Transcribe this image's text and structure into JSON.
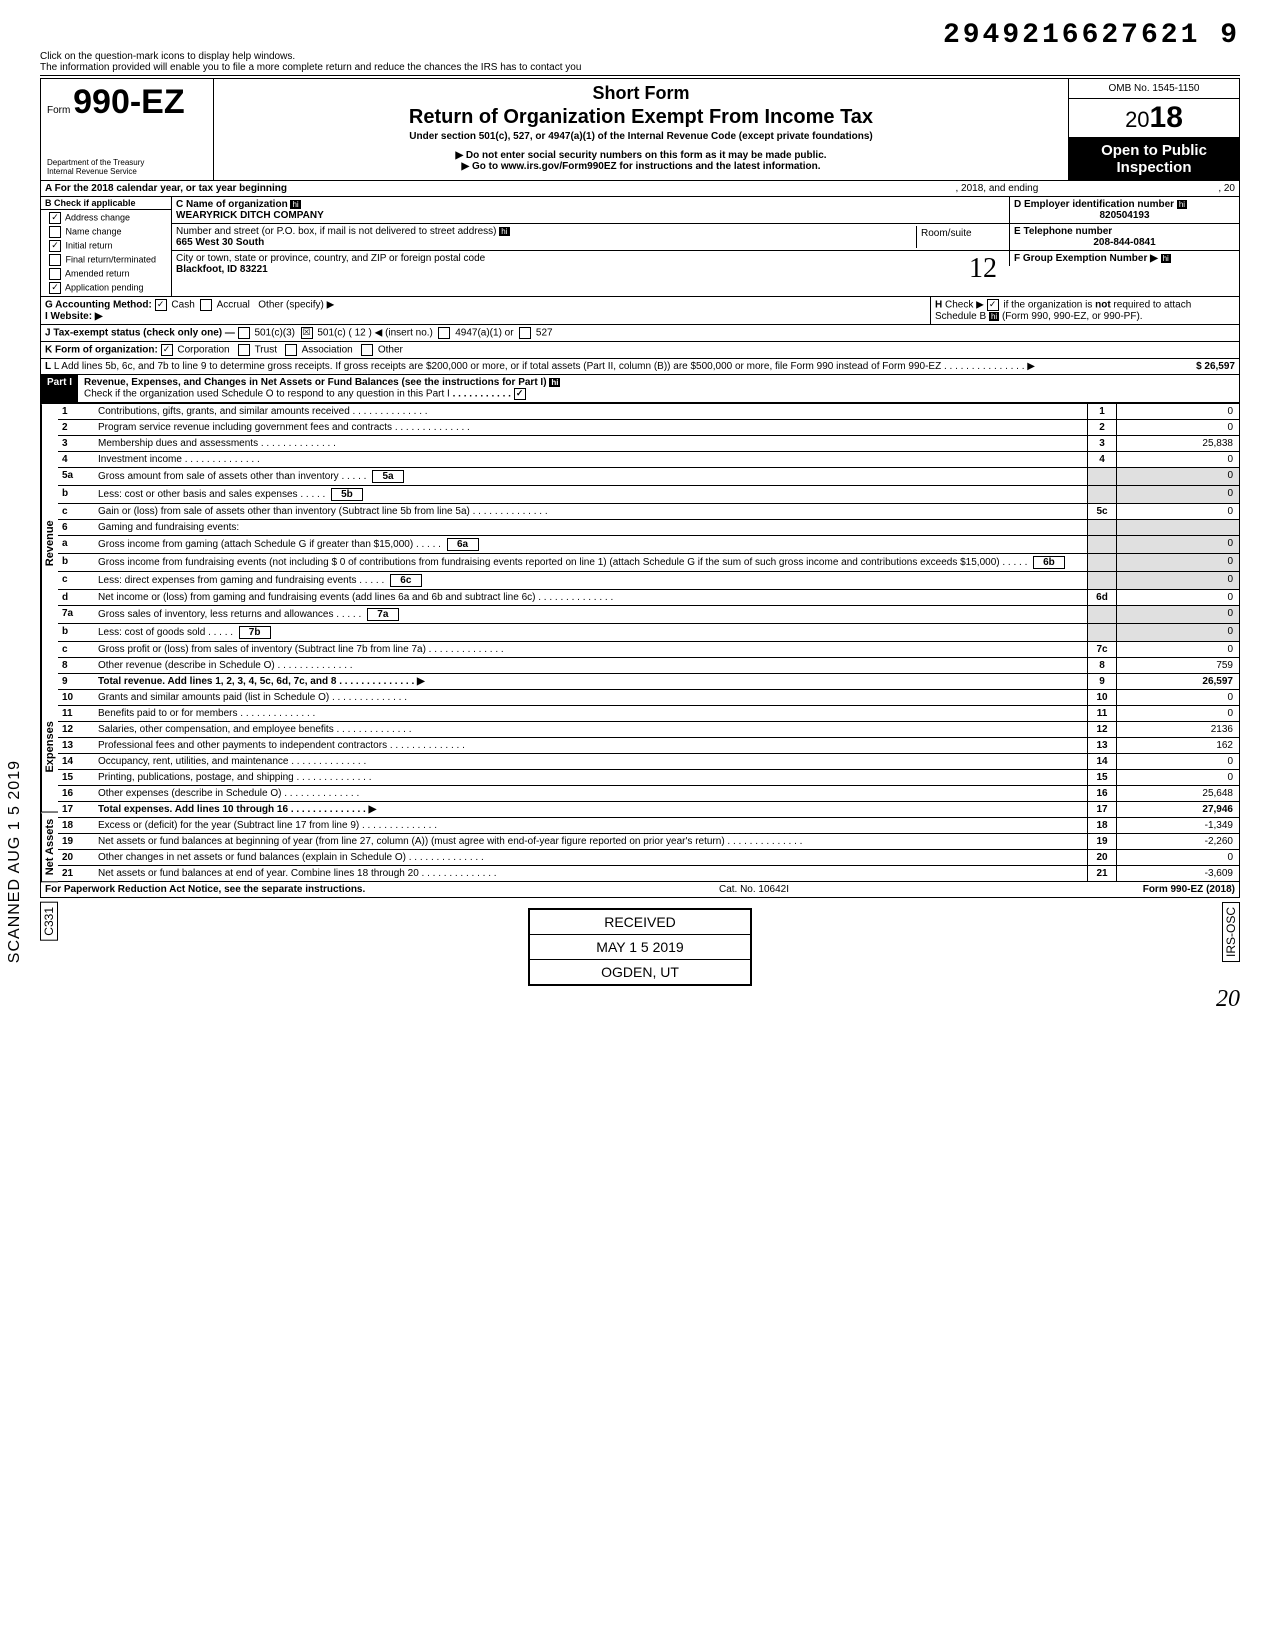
{
  "top_number": "2949216627621  9",
  "hint": "Click on the question-mark icons to display help windows.\nThe information provided will enable you to file a more complete return and reduce the chances the IRS has to contact you",
  "form_prefix": "Form",
  "form_number": "990-EZ",
  "dept": "Department of the Treasury\nInternal Revenue Service",
  "short_form": "Short Form",
  "title": "Return of Organization Exempt From Income Tax",
  "subtitle": "Under section 501(c), 527, or 4947(a)(1) of the Internal Revenue Code (except private foundations)",
  "note1": "▶ Do not enter social security numbers on this form as it may be made public.",
  "note2": "▶ Go to www.irs.gov/Form990EZ for instructions and the latest information.",
  "omb": "OMB No. 1545-1150",
  "year_prefix": "20",
  "year_bold": "18",
  "open": "Open to Public Inspection",
  "line_a": "A  For the 2018 calendar year, or tax year beginning",
  "line_a_mid": ", 2018, and ending",
  "line_a_end": ", 20",
  "b_label": "B  Check if applicable",
  "b_items": [
    {
      "c": "✓",
      "t": "Address change"
    },
    {
      "c": "",
      "t": "Name change"
    },
    {
      "c": "✓",
      "t": "Initial return"
    },
    {
      "c": "",
      "t": "Final return/terminated"
    },
    {
      "c": "",
      "t": "Amended return"
    },
    {
      "c": "✓",
      "t": "Application pending"
    }
  ],
  "c_label": "C  Name of organization",
  "c_val": "WEARYRICK DITCH COMPANY",
  "addr_label": "Number and street (or P.O. box, if mail is not delivered to street address)",
  "room": "Room/suite",
  "addr_val": "665 West 30 South",
  "city_label": "City or town, state or province, country, and ZIP or foreign postal code",
  "city_val": "Blackfoot, ID 83221",
  "d_label": "D Employer identification number",
  "d_val": "820504193",
  "e_label": "E Telephone number",
  "e_val": "208-844-0841",
  "f_label": "F Group Exemption Number ▶",
  "g_label": "G  Accounting Method:",
  "g_cash": "Cash",
  "g_accrual": "Accrual",
  "g_other": "Other (specify) ▶",
  "h_label": "H  Check ▶ ☑ if the organization is not required to attach Schedule B (Form 990, 990-EZ, or 990-PF).",
  "i_label": "I   Website: ▶",
  "j_label": "J  Tax-exempt status (check only one) —",
  "j_501c3": "501(c)(3)",
  "j_501c": "501(c) ( 12 ) ◀ (insert no.)",
  "j_4947": "4947(a)(1) or",
  "j_527": "527",
  "k_label": "K  Form of organization:",
  "k_corp": "Corporation",
  "k_trust": "Trust",
  "k_assoc": "Association",
  "k_other": "Other",
  "l_label": "L  Add lines 5b, 6c, and 7b to line 9 to determine gross receipts. If gross receipts are $200,000 or more, or if total assets (Part II, column (B)) are $500,000 or more, file Form 990 instead of Form 990-EZ",
  "l_val": "26,597",
  "part1": "Part I",
  "part1_title": "Revenue, Expenses, and Changes in Net Assets or Fund Balances (see the instructions for Part I)",
  "part1_check": "Check if the organization used Schedule O to respond to any question in this Part I",
  "side_rev": "Revenue",
  "side_exp": "Expenses",
  "side_net": "Net Assets",
  "scanned": "SCANNED  AUG 1 5 2019",
  "lines": [
    {
      "n": "1",
      "t": "Contributions, gifts, grants, and similar amounts received",
      "box": "1",
      "v": "0"
    },
    {
      "n": "2",
      "t": "Program service revenue including government fees and contracts",
      "box": "2",
      "v": "0"
    },
    {
      "n": "3",
      "t": "Membership dues and assessments",
      "box": "3",
      "v": "25,838"
    },
    {
      "n": "4",
      "t": "Investment income",
      "box": "4",
      "v": "0"
    },
    {
      "n": "5a",
      "t": "Gross amount from sale of assets other than inventory",
      "ibox": "5a",
      "iv": "0"
    },
    {
      "n": "b",
      "t": "Less: cost or other basis and sales expenses",
      "ibox": "5b",
      "iv": "0"
    },
    {
      "n": "c",
      "t": "Gain or (loss) from sale of assets other than inventory (Subtract line 5b from line 5a)",
      "box": "5c",
      "v": "0"
    },
    {
      "n": "6",
      "t": "Gaming and fundraising events:"
    },
    {
      "n": "a",
      "t": "Gross income from gaming (attach Schedule G if greater than $15,000)",
      "ibox": "6a",
      "iv": "0"
    },
    {
      "n": "b",
      "t": "Gross income from fundraising events (not including  $                    0 of contributions from fundraising events reported on line 1) (attach Schedule G if the sum of such gross income and contributions exceeds $15,000)",
      "ibox": "6b",
      "iv": "0"
    },
    {
      "n": "c",
      "t": "Less: direct expenses from gaming and fundraising events",
      "ibox": "6c",
      "iv": "0"
    },
    {
      "n": "d",
      "t": "Net income or (loss) from gaming and fundraising events (add lines 6a and 6b and subtract line 6c)",
      "box": "6d",
      "v": "0"
    },
    {
      "n": "7a",
      "t": "Gross sales of inventory, less returns and allowances",
      "ibox": "7a",
      "iv": "0"
    },
    {
      "n": "b",
      "t": "Less: cost of goods sold",
      "ibox": "7b",
      "iv": "0"
    },
    {
      "n": "c",
      "t": "Gross profit or (loss) from sales of inventory (Subtract line 7b from line 7a)",
      "box": "7c",
      "v": "0"
    },
    {
      "n": "8",
      "t": "Other revenue (describe in Schedule O)",
      "box": "8",
      "v": "759"
    },
    {
      "n": "9",
      "t": "Total revenue. Add lines 1, 2, 3, 4, 5c, 6d, 7c, and 8",
      "box": "9",
      "v": "26,597",
      "bold": true
    },
    {
      "n": "10",
      "t": "Grants and similar amounts paid (list in Schedule O)",
      "box": "10",
      "v": "0"
    },
    {
      "n": "11",
      "t": "Benefits paid to or for members",
      "box": "11",
      "v": "0"
    },
    {
      "n": "12",
      "t": "Salaries, other compensation, and employee benefits",
      "box": "12",
      "v": "2136"
    },
    {
      "n": "13",
      "t": "Professional fees and other payments to independent contractors",
      "box": "13",
      "v": "162"
    },
    {
      "n": "14",
      "t": "Occupancy, rent, utilities, and maintenance",
      "box": "14",
      "v": "0"
    },
    {
      "n": "15",
      "t": "Printing, publications, postage, and shipping",
      "box": "15",
      "v": "0"
    },
    {
      "n": "16",
      "t": "Other expenses (describe in Schedule O)",
      "box": "16",
      "v": "25,648"
    },
    {
      "n": "17",
      "t": "Total expenses. Add lines 10 through 16",
      "box": "17",
      "v": "27,946",
      "bold": true
    },
    {
      "n": "18",
      "t": "Excess or (deficit) for the year (Subtract line 17 from line 9)",
      "box": "18",
      "v": "-1,349"
    },
    {
      "n": "19",
      "t": "Net assets or fund balances at beginning of year (from line 27, column (A)) (must agree with end-of-year figure reported on prior year's return)",
      "box": "19",
      "v": "-2,260"
    },
    {
      "n": "20",
      "t": "Other changes in net assets or fund balances (explain in Schedule O)",
      "box": "20",
      "v": "0"
    },
    {
      "n": "21",
      "t": "Net assets or fund balances at end of year. Combine lines 18 through 20",
      "box": "21",
      "v": "-3,609"
    }
  ],
  "footer_left": "For Paperwork Reduction Act Notice, see the separate instructions.",
  "footer_mid": "Cat. No. 10642I",
  "footer_right": "Form 990-EZ (2018)",
  "received": "RECEIVED",
  "received_date": "MAY 1 5 2019",
  "received_loc": "OGDEN, UT",
  "c331": "C331",
  "irs_osc": "IRS-OSC",
  "hand": "20"
}
